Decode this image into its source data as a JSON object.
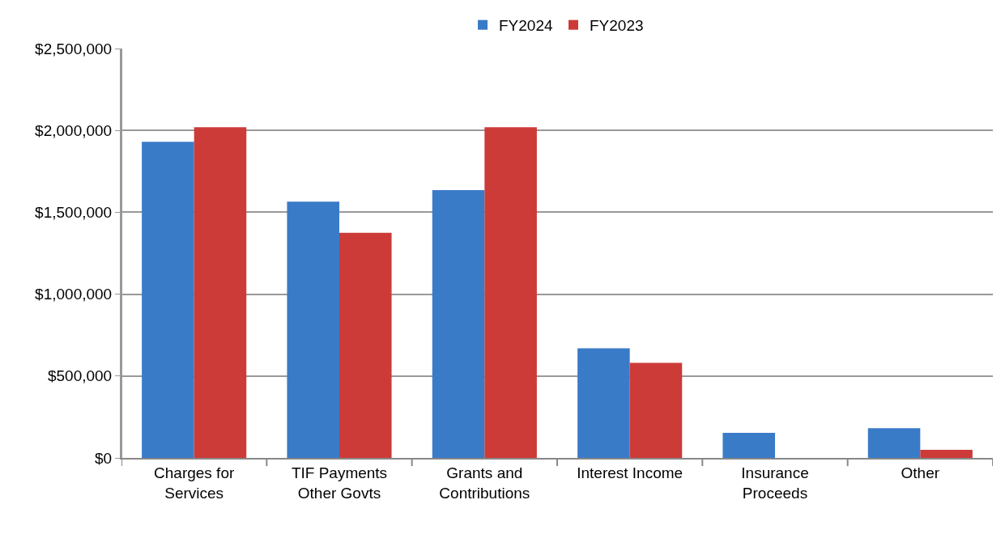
{
  "chart_data": {
    "type": "bar",
    "categories": [
      "Charges for Services",
      "TIF Payments Other Govts",
      "Grants and Contributions",
      "Interest Income",
      "Insurance Proceeds",
      "Other"
    ],
    "series": [
      {
        "name": "FY2024",
        "color": "#3a7bc8",
        "values": [
          1930000,
          1565000,
          1635000,
          670000,
          153000,
          182000
        ]
      },
      {
        "name": "FY2023",
        "color": "#cc3b38",
        "values": [
          2020000,
          1375000,
          2020000,
          580000,
          0,
          49000
        ]
      }
    ],
    "ylim": [
      0,
      2500000
    ],
    "yticks": [
      {
        "value": 0,
        "label": "$0"
      },
      {
        "value": 500000,
        "label": "$500,000"
      },
      {
        "value": 1000000,
        "label": "$1,000,000"
      },
      {
        "value": 1500000,
        "label": "$1,500,000"
      },
      {
        "value": 2000000,
        "label": "$2,000,000"
      },
      {
        "value": 2500000,
        "label": "$2,500,000"
      }
    ],
    "grid": "y",
    "legend": "top"
  }
}
